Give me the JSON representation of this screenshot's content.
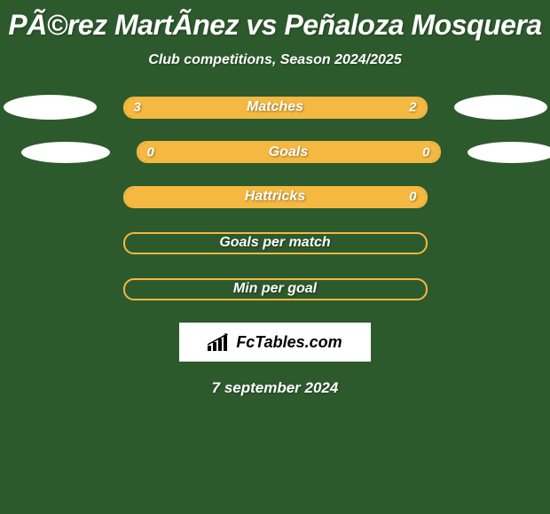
{
  "title": "PÃ©rez MartÃ­nez vs Peñaloza Mosquera",
  "subtitle": "Club competitions, Season 2024/2025",
  "background_color": "#2d5a2d",
  "ellipse_color": "#ffffff",
  "bar_border_color": "#f5b840",
  "bar_fill_color": "#f5b840",
  "bars": [
    {
      "label": "Matches",
      "left_value": "3",
      "right_value": "2",
      "left_pct": 60,
      "right_pct": 40,
      "show_ellipses": true,
      "show_values": true,
      "full_fill": true
    },
    {
      "label": "Goals",
      "left_value": "0",
      "right_value": "0",
      "left_pct": 100,
      "right_pct": 0,
      "show_ellipses": true,
      "show_values": true,
      "full_fill": true
    },
    {
      "label": "Hattricks",
      "left_value": "",
      "right_value": "0",
      "left_pct": 100,
      "right_pct": 0,
      "show_ellipses": false,
      "show_values": true,
      "full_fill": true
    },
    {
      "label": "Goals per match",
      "left_value": "",
      "right_value": "",
      "left_pct": 0,
      "right_pct": 0,
      "show_ellipses": false,
      "show_values": false,
      "full_fill": false
    },
    {
      "label": "Min per goal",
      "left_value": "",
      "right_value": "",
      "left_pct": 0,
      "right_pct": 0,
      "show_ellipses": false,
      "show_values": false,
      "full_fill": false
    }
  ],
  "logo_text": "FcTables.com",
  "date": "7 september 2024"
}
